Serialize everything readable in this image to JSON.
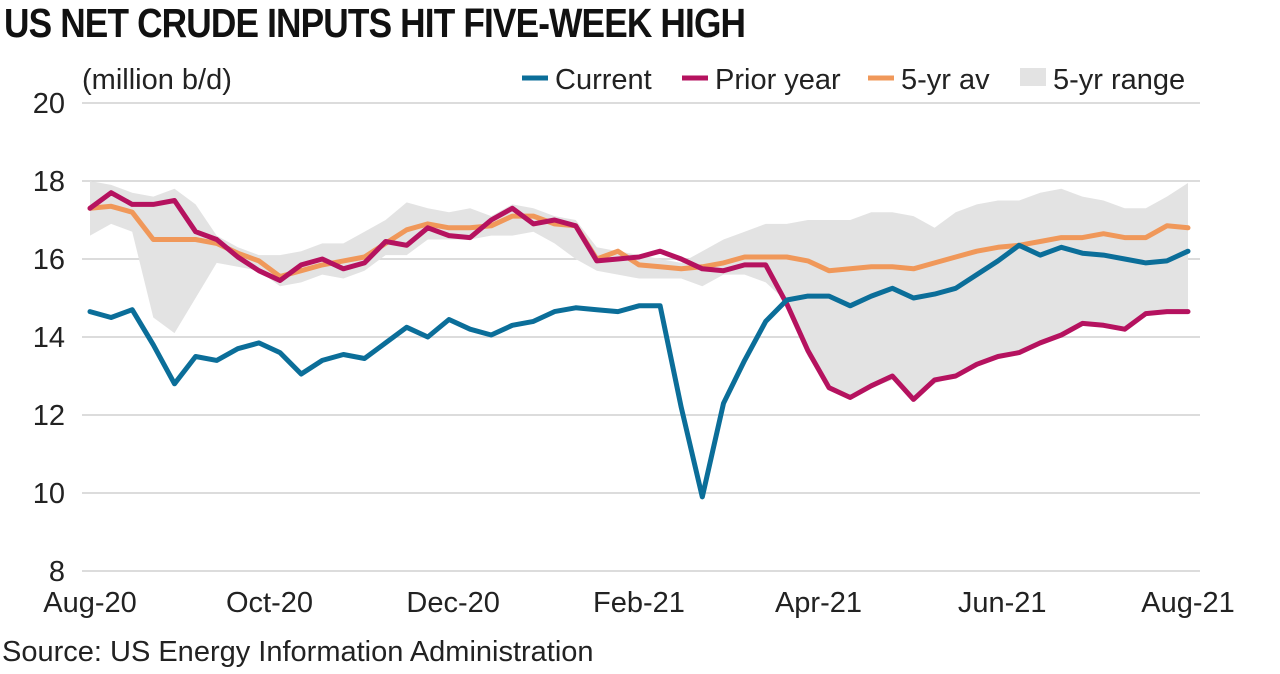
{
  "chart_data": {
    "type": "line",
    "title": "US NET CRUDE INPUTS HIT FIVE-WEEK HIGH",
    "ylabel": "(million b/d)",
    "source": "Source: US Energy Information Administration",
    "ylim": [
      8,
      20
    ],
    "yticks": [
      8,
      10,
      12,
      14,
      16,
      18,
      20
    ],
    "xticks": [
      {
        "label": "Aug-20",
        "week": 0
      },
      {
        "label": "Oct-20",
        "week": 8.5
      },
      {
        "label": "Dec-20",
        "week": 17.2
      },
      {
        "label": "Feb-21",
        "week": 26
      },
      {
        "label": "Apr-21",
        "week": 34.5
      },
      {
        "label": "Jun-21",
        "week": 43.2
      },
      {
        "label": "Aug-21",
        "week": 52
      }
    ],
    "grid": "horizontal",
    "legend_position": "top-right",
    "colors": {
      "current": "#0b6e99",
      "prior_year": "#b5125f",
      "avg": "#f0985a",
      "range": "#e3e3e3",
      "grid": "#d0d0d0"
    },
    "legend": [
      {
        "label": "Current",
        "key": "current"
      },
      {
        "label": "Prior year",
        "key": "prior_year"
      },
      {
        "label": "5-yr av",
        "key": "avg"
      },
      {
        "label": "5-yr range",
        "key": "range"
      }
    ],
    "series": [
      {
        "name": "Current",
        "key": "current",
        "values": [
          14.65,
          14.5,
          14.7,
          13.8,
          12.8,
          13.5,
          13.4,
          13.7,
          13.85,
          13.6,
          13.05,
          13.4,
          13.55,
          13.45,
          13.85,
          14.25,
          14.0,
          14.45,
          14.2,
          14.05,
          14.3,
          14.4,
          14.65,
          14.75,
          14.7,
          14.65,
          14.8,
          14.8,
          12.2,
          9.9,
          12.3,
          13.4,
          14.4,
          14.95,
          15.05,
          15.05,
          14.8,
          15.05,
          15.25,
          15.0,
          15.1,
          15.25,
          15.6,
          15.95,
          16.35,
          16.1,
          16.3,
          16.15,
          16.1,
          16.0,
          15.9,
          15.95,
          16.2
        ]
      },
      {
        "name": "Prior year",
        "key": "prior_year",
        "values": [
          17.3,
          17.7,
          17.4,
          17.4,
          17.5,
          16.7,
          16.5,
          16.05,
          15.7,
          15.45,
          15.85,
          16.0,
          15.75,
          15.9,
          16.45,
          16.35,
          16.8,
          16.6,
          16.55,
          17.0,
          17.3,
          16.9,
          17.0,
          16.85,
          15.95,
          16.0,
          16.05,
          16.2,
          16.0,
          15.75,
          15.7,
          15.85,
          15.85,
          14.85,
          13.65,
          12.7,
          12.45,
          12.75,
          13.0,
          12.4,
          12.9,
          13.0,
          13.3,
          13.5,
          13.6,
          13.85,
          14.05,
          14.35,
          14.3,
          14.2,
          14.6,
          14.65,
          14.65
        ]
      },
      {
        "name": "5-yr av",
        "key": "avg",
        "values": [
          17.3,
          17.35,
          17.2,
          16.5,
          16.5,
          16.5,
          16.4,
          16.15,
          15.95,
          15.55,
          15.7,
          15.85,
          15.95,
          16.05,
          16.4,
          16.75,
          16.9,
          16.8,
          16.8,
          16.85,
          17.1,
          17.1,
          16.9,
          16.85,
          16.0,
          16.2,
          15.85,
          15.8,
          15.75,
          15.8,
          15.9,
          16.05,
          16.05,
          16.05,
          15.95,
          15.7,
          15.75,
          15.8,
          15.8,
          15.75,
          15.9,
          16.05,
          16.2,
          16.3,
          16.35,
          16.45,
          16.55,
          16.55,
          16.65,
          16.55,
          16.55,
          16.85,
          16.8
        ]
      }
    ],
    "range": {
      "name": "5-yr range",
      "low": [
        16.6,
        16.9,
        16.7,
        14.5,
        14.1,
        15.0,
        15.9,
        15.8,
        15.7,
        15.3,
        15.4,
        15.6,
        15.5,
        15.7,
        16.1,
        16.1,
        16.5,
        16.5,
        16.5,
        16.6,
        16.6,
        16.7,
        16.4,
        16.0,
        15.7,
        15.6,
        15.5,
        15.5,
        15.5,
        15.3,
        15.6,
        15.6,
        15.4,
        14.9,
        13.5,
        12.7,
        12.4,
        12.7,
        12.9,
        12.4,
        12.8,
        13.0,
        13.3,
        13.5,
        13.6,
        13.8,
        14.0,
        14.3,
        14.3,
        14.2,
        14.6,
        14.6,
        14.6
      ],
      "high": [
        18.0,
        17.9,
        17.7,
        17.6,
        17.8,
        17.4,
        16.6,
        16.3,
        16.1,
        16.1,
        16.2,
        16.4,
        16.4,
        16.7,
        17.0,
        17.45,
        17.3,
        17.2,
        17.3,
        17.1,
        17.4,
        17.3,
        17.1,
        17.0,
        16.3,
        16.2,
        16.1,
        16.0,
        15.9,
        16.2,
        16.5,
        16.7,
        16.9,
        16.9,
        17.0,
        17.0,
        17.0,
        17.2,
        17.2,
        17.1,
        16.8,
        17.2,
        17.4,
        17.5,
        17.5,
        17.7,
        17.8,
        17.6,
        17.5,
        17.3,
        17.3,
        17.6,
        17.95
      ]
    }
  }
}
